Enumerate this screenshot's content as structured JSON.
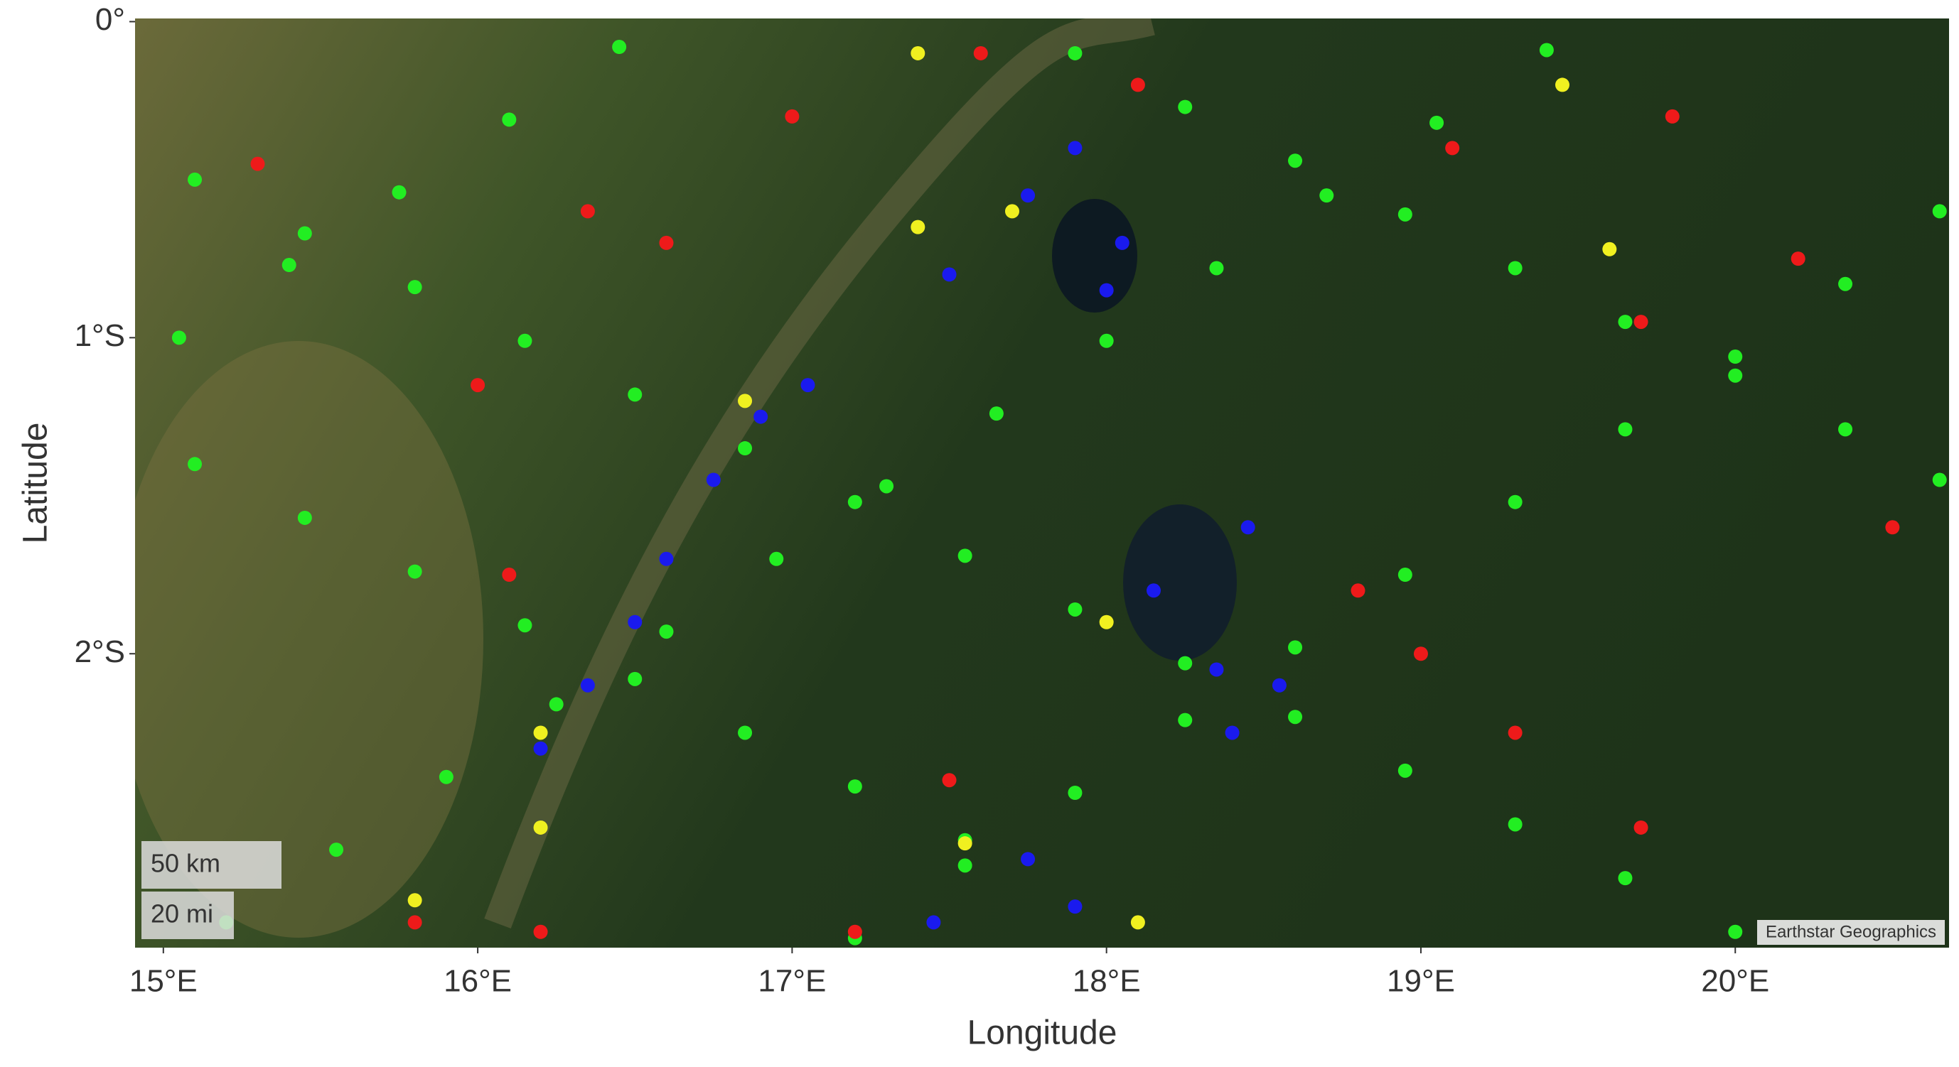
{
  "chart_data": {
    "type": "scatter",
    "xlabel": "Longitude",
    "ylabel": "Latitude",
    "xlim": [
      14.91,
      20.68
    ],
    "ylim": [
      -2.93,
      0.01
    ],
    "xticks": [
      {
        "value": 15,
        "label": "15°E"
      },
      {
        "value": 16,
        "label": "16°E"
      },
      {
        "value": 17,
        "label": "17°E"
      },
      {
        "value": 18,
        "label": "18°E"
      },
      {
        "value": 19,
        "label": "19°E"
      },
      {
        "value": 20,
        "label": "20°E"
      }
    ],
    "yticks": [
      {
        "value": 0,
        "label": "0°"
      },
      {
        "value": -1,
        "label": "1°S"
      },
      {
        "value": -2,
        "label": "2°S"
      }
    ],
    "scale_bar": [
      "50 km",
      "20 mi"
    ],
    "attribution": "Earthstar Geographics",
    "series": [
      {
        "color": "#22ee22",
        "x": [
          15.1,
          15.45,
          15.8,
          16.15,
          16.5,
          16.85,
          17.2,
          17.55,
          17.9,
          18.25,
          18.6,
          18.95,
          19.3,
          19.65,
          20.0,
          17.9,
          18.25,
          18.6,
          18.95,
          19.3,
          19.65,
          20.0,
          20.35,
          20.65,
          15.2,
          15.55,
          15.9,
          16.25,
          16.6,
          16.95,
          17.3,
          17.65,
          18.0,
          18.35,
          18.7,
          19.05,
          19.4,
          17.2,
          17.55,
          17.9,
          18.25,
          18.6,
          18.95,
          19.3,
          19.65,
          20.0,
          20.35,
          20.65,
          15.05,
          15.4,
          15.75,
          16.1,
          16.45,
          15.1,
          15.45,
          15.8,
          16.15,
          16.5,
          16.85,
          17.2,
          17.55
        ],
        "y": [
          -0.5,
          -0.67,
          -0.84,
          -1.01,
          -1.18,
          -1.35,
          -1.52,
          -1.69,
          -1.86,
          -2.03,
          -2.2,
          -2.37,
          -2.54,
          -2.71,
          -2.88,
          -0.1,
          -0.27,
          -0.44,
          -0.61,
          -0.78,
          -0.95,
          -1.12,
          -1.29,
          -1.45,
          -2.85,
          -2.62,
          -2.39,
          -2.16,
          -1.93,
          -1.7,
          -1.47,
          -1.24,
          -1.01,
          -0.78,
          -0.55,
          -0.32,
          -0.09,
          -2.9,
          -2.67,
          -2.44,
          -2.21,
          -1.98,
          -1.75,
          -1.52,
          -1.29,
          -1.06,
          -0.83,
          -0.6,
          -1.0,
          -0.77,
          -0.54,
          -0.31,
          -0.08,
          -1.4,
          -1.57,
          -1.74,
          -1.91,
          -2.08,
          -2.25,
          -2.42,
          -2.59
        ]
      },
      {
        "color": "#1a1aee",
        "x": [
          16.2,
          16.35,
          16.5,
          16.6,
          16.75,
          16.9,
          17.05,
          17.5,
          17.75,
          17.9,
          18.05,
          18.0,
          18.15,
          18.35,
          18.4,
          18.55,
          17.75,
          17.9,
          17.45,
          18.45
        ],
        "y": [
          -2.3,
          -2.1,
          -1.9,
          -1.7,
          -1.45,
          -1.25,
          -1.15,
          -0.8,
          -0.55,
          -0.4,
          -0.7,
          -0.85,
          -1.8,
          -2.05,
          -2.25,
          -2.1,
          -2.65,
          -2.8,
          -2.85,
          -1.6
        ]
      },
      {
        "color": "#ee1a1a",
        "x": [
          15.3,
          16.0,
          16.35,
          16.6,
          17.0,
          17.6,
          18.1,
          19.1,
          19.8,
          20.2,
          19.7,
          18.8,
          19.0,
          19.3,
          17.5,
          17.2,
          16.2,
          15.8,
          16.1,
          20.5,
          19.7
        ],
        "y": [
          -0.45,
          -1.15,
          -0.6,
          -0.7,
          -0.3,
          -0.1,
          -0.2,
          -0.4,
          -0.3,
          -0.75,
          -0.95,
          -1.8,
          -2.0,
          -2.25,
          -2.4,
          -2.88,
          -2.88,
          -2.85,
          -1.75,
          -1.6,
          -2.55
        ]
      },
      {
        "color": "#f0f020",
        "x": [
          17.4,
          17.4,
          17.7,
          16.85,
          16.2,
          16.2,
          18.0,
          17.55,
          18.1,
          19.45,
          19.6,
          15.8
        ],
        "y": [
          -0.1,
          -0.65,
          -0.6,
          -1.2,
          -2.25,
          -2.55,
          -1.9,
          -2.6,
          -2.85,
          -0.2,
          -0.72,
          -2.78
        ]
      }
    ]
  }
}
